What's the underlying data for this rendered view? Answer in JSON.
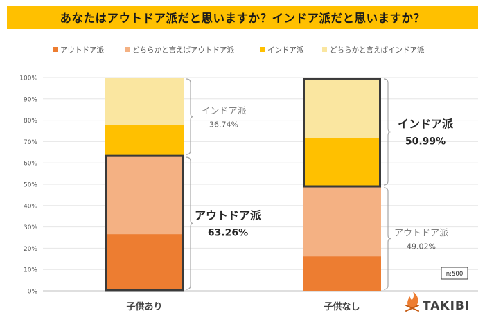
{
  "title": "あなたはアウトドア派だと思いますか？インドア派だと思いますか？",
  "sample_size": "n:500",
  "brand": "TAKIBI",
  "colors": {
    "outdoor": "#ED7D31",
    "rather_outdoor": "#F4B183",
    "indoor": "#FFC000",
    "rather_indoor": "#FAE6A0",
    "title_bg": "#FFC000"
  },
  "chart_data": {
    "type": "bar",
    "stacked": true,
    "percent_axis": true,
    "categories": [
      "子供あり",
      "子供なし"
    ],
    "series": [
      {
        "name": "アウトドア派",
        "color": "#ED7D31",
        "values": [
          26.6,
          16.2
        ]
      },
      {
        "name": "どちらかと言えばアウトドア派",
        "color": "#F4B183",
        "values": [
          36.66,
          32.82
        ]
      },
      {
        "name": "インドア派",
        "color": "#FFC000",
        "values": [
          14.6,
          22.8
        ]
      },
      {
        "name": "どちらかと言えばインドア派",
        "color": "#FAE6A0",
        "values": [
          22.14,
          28.19
        ]
      }
    ],
    "ylim": [
      0,
      100
    ],
    "yticks": [
      "0%",
      "10%",
      "20%",
      "30%",
      "40%",
      "50%",
      "60%",
      "70%",
      "80%",
      "90%",
      "100%"
    ],
    "legend_position": "top",
    "annotations": [
      {
        "category": "子供あり",
        "group": "indoor",
        "label": "インドア派",
        "value": "36.74%",
        "emphasis": false
      },
      {
        "category": "子供あり",
        "group": "outdoor",
        "label": "アウトドア派",
        "value": "63.26%",
        "emphasis": true
      },
      {
        "category": "子供なし",
        "group": "indoor",
        "label": "インドア派",
        "value": "50.99%",
        "emphasis": true
      },
      {
        "category": "子供なし",
        "group": "outdoor",
        "label": "アウトドア派",
        "value": "49.02%",
        "emphasis": false
      }
    ]
  }
}
